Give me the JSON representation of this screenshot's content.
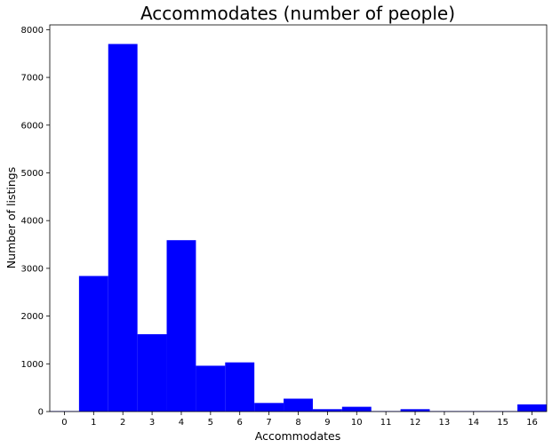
{
  "chart_data": {
    "type": "bar",
    "title": "Accommodates (number of people)",
    "xlabel": "Accommodates",
    "ylabel": "Number of listings",
    "categories": [
      "0",
      "1",
      "2",
      "3",
      "4",
      "5",
      "6",
      "7",
      "8",
      "9",
      "10",
      "11",
      "12",
      "13",
      "14",
      "15",
      "16"
    ],
    "values": [
      10,
      2840,
      7700,
      1620,
      3590,
      960,
      1030,
      180,
      270,
      50,
      100,
      10,
      50,
      10,
      10,
      10,
      150
    ],
    "ylim": [
      0,
      8100
    ],
    "yticks": [
      0,
      1000,
      2000,
      3000,
      4000,
      5000,
      6000,
      7000,
      8000
    ],
    "xlim": [
      -0.5,
      16.5
    ],
    "bar_width": 1.0,
    "grid": false,
    "legend": "none",
    "bar_color": "#0000ff"
  }
}
